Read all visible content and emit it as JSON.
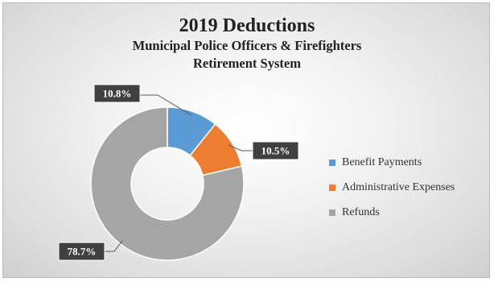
{
  "chart_data": {
    "type": "pie",
    "donut": true,
    "title": "2019 Deductions",
    "subtitle_lines": [
      "Municipal Police Officers & Firefighters",
      "Retirement System"
    ],
    "categories": [
      "Benefit Payments",
      "Administrative Expenses",
      "Refunds"
    ],
    "values": [
      10.8,
      10.5,
      78.7
    ],
    "labels": [
      "10.8%",
      "10.5%",
      "78.7%"
    ],
    "colors": [
      "#5b9bd5",
      "#ed7d31",
      "#a5a5a5"
    ],
    "label_box_color": "#404040",
    "legend_position": "right"
  }
}
